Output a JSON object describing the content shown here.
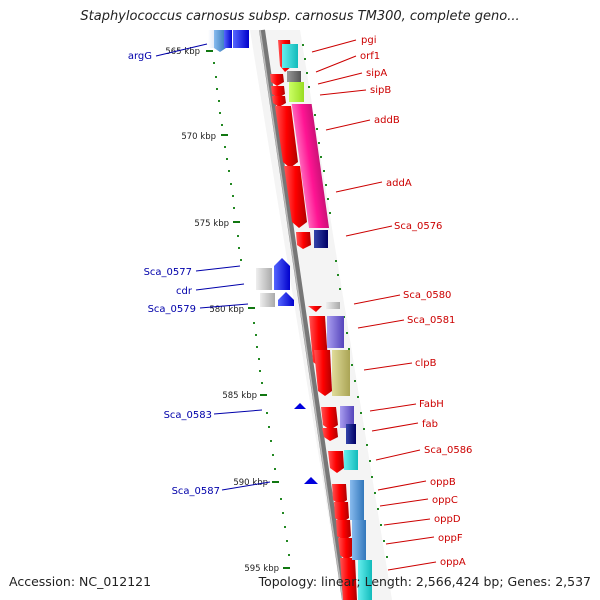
{
  "title": "Staphylococcus carnosus subsp. carnosus TM300, complete geno...",
  "footer": {
    "accession": "Accession: NC_012121",
    "summary": "Topology: linear; Length: 2,566,424 bp; Genes: 2,537"
  },
  "ruler": [
    "565 kbp",
    "570 kbp",
    "575 kbp",
    "580 kbp",
    "585 kbp",
    "590 kbp",
    "595 kbp"
  ],
  "right_genes": [
    {
      "name": "pgi",
      "color": "#cc0000"
    },
    {
      "name": "orf1",
      "color": "#cc0000"
    },
    {
      "name": "sipA",
      "color": "#cc0000"
    },
    {
      "name": "sipB",
      "color": "#cc0000"
    },
    {
      "name": "addB",
      "color": "#cc0000"
    },
    {
      "name": "addA",
      "color": "#cc0000"
    },
    {
      "name": "Sca_0576",
      "color": "#cc0000"
    },
    {
      "name": "Sca_0580",
      "color": "#cc0000"
    },
    {
      "name": "Sca_0581",
      "color": "#cc0000"
    },
    {
      "name": "clpB",
      "color": "#cc0000"
    },
    {
      "name": "FabH",
      "color": "#cc0000"
    },
    {
      "name": "fab",
      "color": "#cc0000"
    },
    {
      "name": "Sca_0586",
      "color": "#cc0000"
    },
    {
      "name": "oppB",
      "color": "#cc0000"
    },
    {
      "name": "oppC",
      "color": "#cc0000"
    },
    {
      "name": "oppD",
      "color": "#cc0000"
    },
    {
      "name": "oppF",
      "color": "#cc0000"
    },
    {
      "name": "oppA",
      "color": "#cc0000"
    }
  ],
  "left_genes": [
    {
      "name": "argG",
      "color": "#0000aa"
    },
    {
      "name": "Sca_0577",
      "color": "#0000aa"
    },
    {
      "name": "cdr",
      "color": "#0000aa"
    },
    {
      "name": "Sca_0579",
      "color": "#0000aa"
    },
    {
      "name": "Sca_0583",
      "color": "#0000aa"
    },
    {
      "name": "Sca_0587",
      "color": "#0000aa"
    }
  ]
}
